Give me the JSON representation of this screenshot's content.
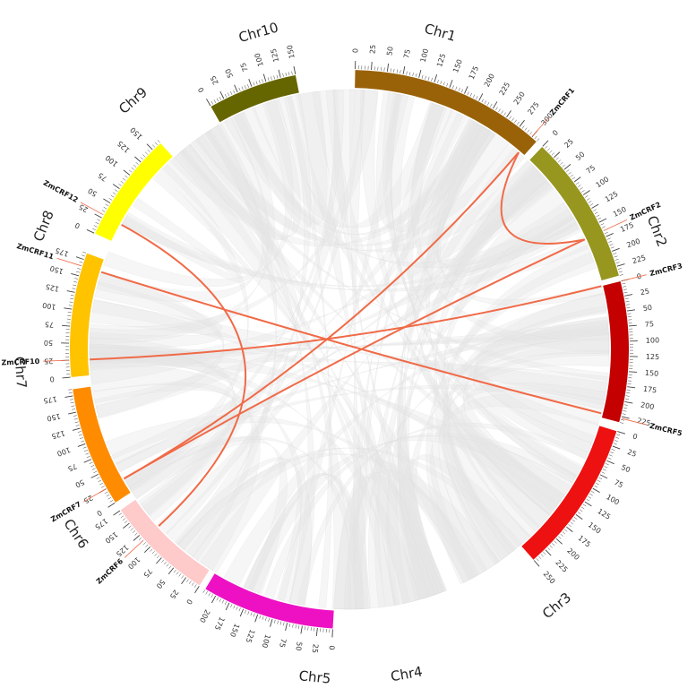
{
  "chromosomes": [
    {
      "name": "Chr1",
      "length": 310,
      "tick_step": 25,
      "color": "#9A6208"
    },
    {
      "name": "Chr2",
      "length": 240,
      "tick_step": 25,
      "color": "#97961F"
    },
    {
      "name": "Chr3",
      "length": 235,
      "tick_step": 25,
      "color": "#C40000"
    },
    {
      "name": "Chr4",
      "length": 250,
      "tick_step": 25,
      "color": "#EE1111"
    },
    {
      "name": "Chr5",
      "length": 220,
      "tick_step": 25,
      "color": "#EE11C4"
    },
    {
      "name": "Chr6",
      "length": 175,
      "tick_step": 25,
      "color": "#FFCACA"
    },
    {
      "name": "Chr7",
      "length": 185,
      "tick_step": 25,
      "color": "#FF8C00"
    },
    {
      "name": "Chr8",
      "length": 185,
      "tick_step": 25,
      "color": "#FFC300"
    },
    {
      "name": "Chr9",
      "length": 165,
      "tick_step": 25,
      "color": "#FFFF00"
    },
    {
      "name": "Chr10",
      "length": 150,
      "tick_step": 25,
      "color": "#666600"
    }
  ],
  "genes": [
    {
      "name": "ZmCRF1",
      "chr": "Chr1",
      "pos": 300
    },
    {
      "name": "ZmCRF2",
      "chr": "Chr2",
      "pos": 165
    },
    {
      "name": "ZmCRF3",
      "chr": "Chr3",
      "pos": 0
    },
    {
      "name": "ZmCRF5",
      "chr": "Chr3",
      "pos": 228
    },
    {
      "name": "ZmCRF6",
      "chr": "Chr6",
      "pos": 115
    },
    {
      "name": "ZmCRF7",
      "chr": "Chr7",
      "pos": 25
    },
    {
      "name": "ZmCRF10",
      "chr": "Chr8",
      "pos": 25
    },
    {
      "name": "ZmCRF11",
      "chr": "Chr8",
      "pos": 165
    },
    {
      "name": "ZmCRF12",
      "chr": "Chr9",
      "pos": 30
    }
  ],
  "links": [
    {
      "from": "ZmCRF1",
      "to": "ZmCRF7"
    },
    {
      "from": "ZmCRF2",
      "to": "ZmCRF1"
    },
    {
      "from": "ZmCRF2",
      "to": "ZmCRF7"
    },
    {
      "from": "ZmCRF3",
      "to": "ZmCRF10"
    },
    {
      "from": "ZmCRF5",
      "to": "ZmCRF11"
    },
    {
      "from": "ZmCRF6",
      "to": "ZmCRF12"
    }
  ],
  "colors": {
    "link": "#F06A47",
    "background_link": "#E4E4E4",
    "gene_marker": "#F06A47"
  }
}
